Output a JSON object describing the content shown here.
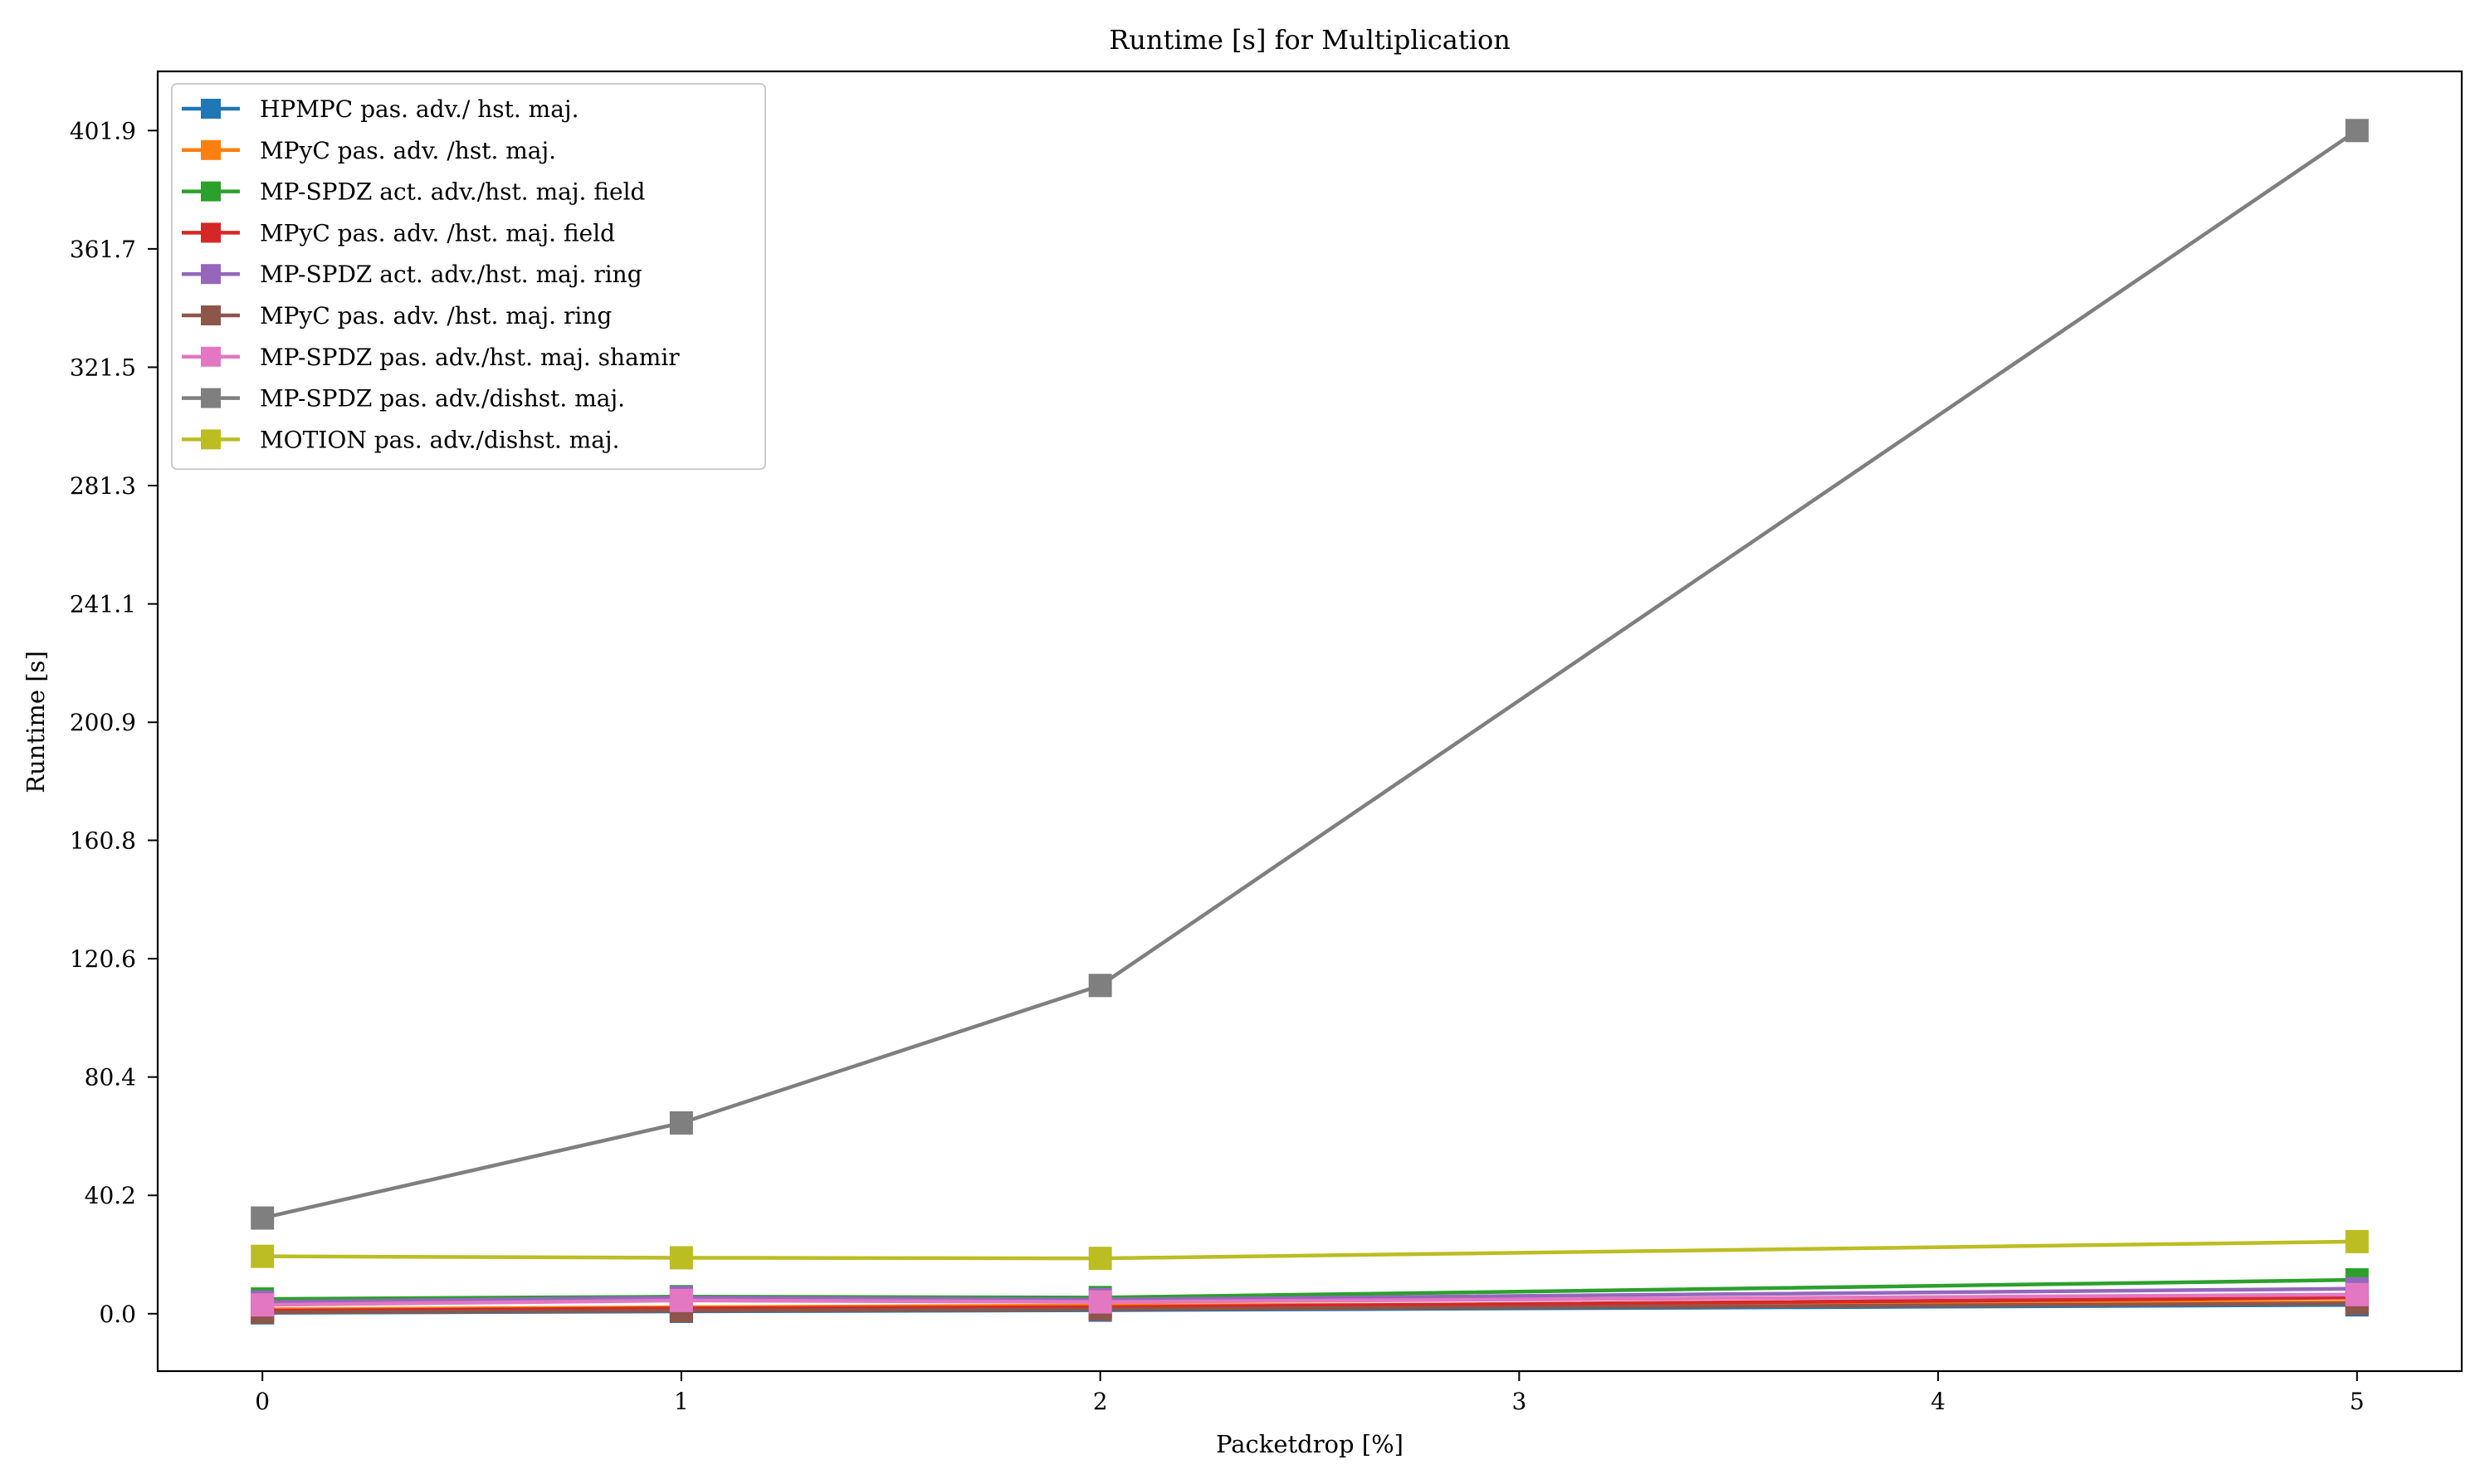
{
  "chart_data": {
    "type": "line",
    "title": "Runtime [s] for Multiplication",
    "xlabel": "Packetdrop [%]",
    "ylabel": "Runtime [s]",
    "x": [
      0,
      1,
      2,
      5
    ],
    "xlim": [
      -0.25,
      5.25
    ],
    "ylim": [
      -19.5,
      422
    ],
    "xticks": [
      0,
      1,
      2,
      3,
      4,
      5
    ],
    "xtick_labels": [
      "0",
      "1",
      "2",
      "3",
      "4",
      "5"
    ],
    "yticks": [
      0.0,
      40.2,
      80.4,
      120.6,
      160.8,
      200.9,
      241.1,
      281.3,
      321.5,
      361.7,
      401.9
    ],
    "ytick_labels": [
      "0.0",
      "40.2",
      "80.4",
      "120.6",
      "160.8",
      "200.9",
      "241.1",
      "281.3",
      "321.5",
      "361.7",
      "401.9"
    ],
    "grid": false,
    "legend_position": "top-left",
    "series": [
      {
        "name": "HPMPC pas. adv./ hst. maj.",
        "color": "#1f77b4",
        "values": [
          0.3,
          0.8,
          1.2,
          3.0
        ]
      },
      {
        "name": "MPyC pas. adv. /hst. maj.",
        "color": "#ff7f0e",
        "values": [
          1.5,
          2.2,
          2.8,
          4.0
        ]
      },
      {
        "name": "MP-SPDZ act. adv./hst. maj. field",
        "color": "#2ca02c",
        "values": [
          5.0,
          5.8,
          5.5,
          11.5
        ]
      },
      {
        "name": "MPyC pas. adv. /hst. maj. field",
        "color": "#d62728",
        "values": [
          1.0,
          1.8,
          2.2,
          5.5
        ]
      },
      {
        "name": "MP-SPDZ act. adv./hst. maj. ring",
        "color": "#9467bd",
        "values": [
          4.0,
          5.5,
          4.8,
          8.5
        ]
      },
      {
        "name": "MPyC pas. adv. /hst. maj. ring",
        "color": "#8c564b",
        "values": [
          0.5,
          1.0,
          1.5,
          3.5
        ]
      },
      {
        "name": "MP-SPDZ pas. adv./hst. maj. shamir",
        "color": "#e377c2",
        "values": [
          3.0,
          4.5,
          4.0,
          6.5
        ]
      },
      {
        "name": "MP-SPDZ pas. adv./dishst. maj.",
        "color": "#7f7f7f",
        "values": [
          32.5,
          64.8,
          111.5,
          401.9
        ]
      },
      {
        "name": "MOTION pas. adv./dishst. maj.",
        "color": "#bcbd22",
        "values": [
          19.5,
          19.0,
          18.8,
          24.5
        ]
      }
    ]
  }
}
